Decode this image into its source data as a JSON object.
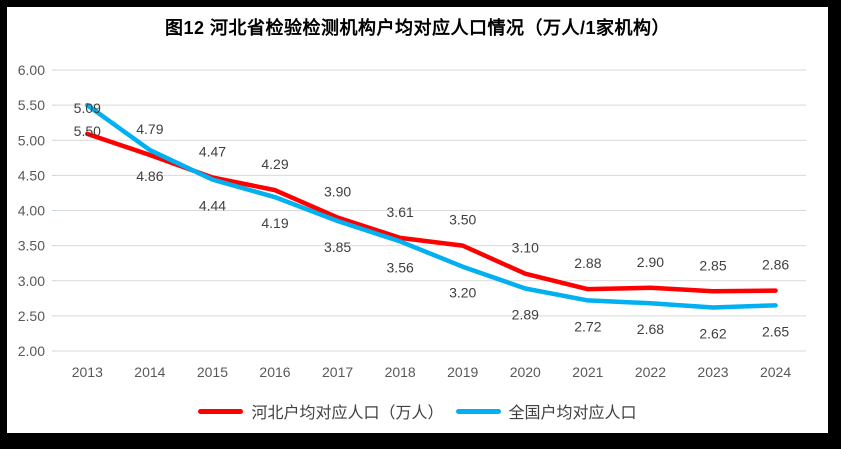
{
  "title": "图12  河北省检验检测机构户均对应人口情况（万人/1家机构）",
  "colors": {
    "frame": "#000000",
    "panel": "#ffffff",
    "gridline": "#d9d9d9",
    "tick": "#bdd7ee",
    "axis_text": "#595959",
    "data_label": "#404040",
    "series_hebei": "#ff0000",
    "series_national": "#00b0f0"
  },
  "chart_data": {
    "type": "line",
    "title": "图12  河北省检验检测机构户均对应人口情况（万人/1家机构）",
    "categories": [
      "2013",
      "2014",
      "2015",
      "2016",
      "2017",
      "2018",
      "2019",
      "2020",
      "2021",
      "2022",
      "2023",
      "2024"
    ],
    "series": [
      {
        "id": "hebei",
        "name": "河北户均对应人口（万人）",
        "color": "#ff0000",
        "label_position": "above",
        "values": [
          5.09,
          4.79,
          4.47,
          4.29,
          3.9,
          3.61,
          3.5,
          3.1,
          2.88,
          2.9,
          2.85,
          2.86
        ]
      },
      {
        "id": "national",
        "name": "全国户均对应人口",
        "color": "#00b0f0",
        "label_position": "below",
        "values": [
          5.5,
          4.86,
          4.44,
          4.19,
          3.85,
          3.56,
          3.2,
          2.89,
          2.72,
          2.68,
          2.62,
          2.65
        ]
      }
    ],
    "ylim": [
      2.0,
      6.0
    ],
    "ytick_step": 0.5,
    "yticks": [
      "6.00",
      "5.50",
      "5.00",
      "4.50",
      "4.00",
      "3.50",
      "3.00",
      "2.50",
      "2.00"
    ],
    "xlabel": "",
    "ylabel": "",
    "grid": true,
    "data_labels": true,
    "legend_position": "bottom"
  }
}
